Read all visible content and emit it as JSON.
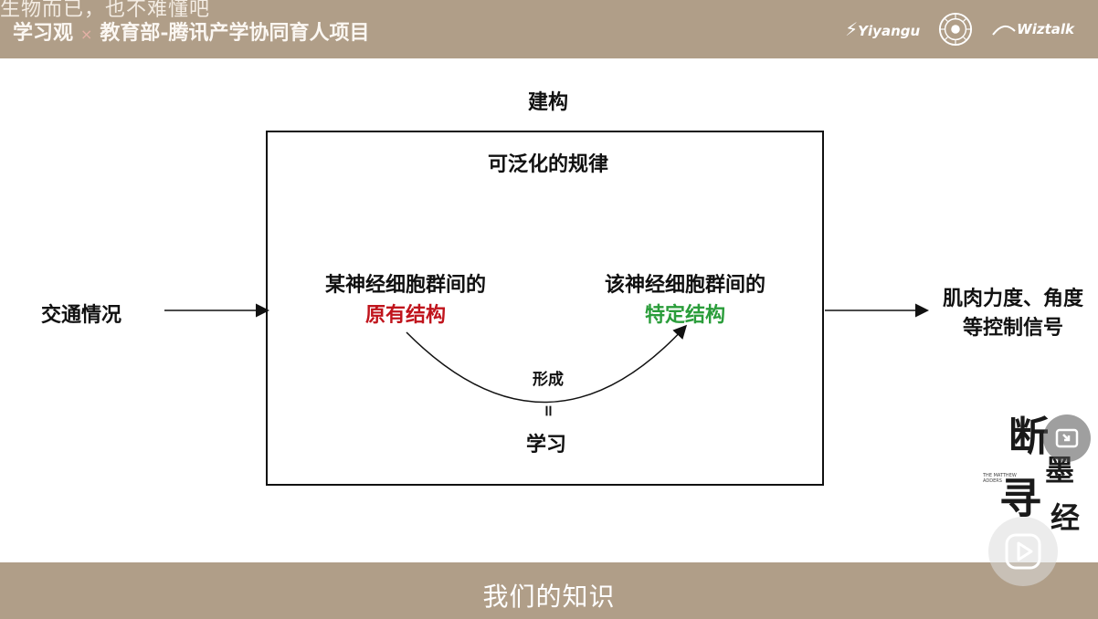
{
  "header": {
    "overlay_caption": "生物而已，也不难懂吧",
    "brand": "学习观",
    "separator": "×",
    "project": "教育部-腾讯产学协同育人项目",
    "logo_yiyang": "Yiyangu",
    "logo_wiztalk": "Wiztalk"
  },
  "diagram": {
    "top_label": "建构",
    "box_title": "可泛化的规律",
    "input_label": "交通情况",
    "left_line1": "某神经细胞群间的",
    "left_line2": "原有结构",
    "right_line1": "该神经细胞群间的",
    "right_line2": "特定结构",
    "curve_label": "形成",
    "equals": "=",
    "learning": "学习",
    "output_line1": "肌肉力度、角度",
    "output_line2": "等控制信号"
  },
  "watermark": {
    "fine_print_1": "THE MATTHEW",
    "fine_print_2": "ADDERS"
  },
  "footer": {
    "caption": "我们的知识"
  },
  "colors": {
    "bar": "#b09e88",
    "red_text": "#c0141c",
    "green_text": "#2a9d3a"
  }
}
